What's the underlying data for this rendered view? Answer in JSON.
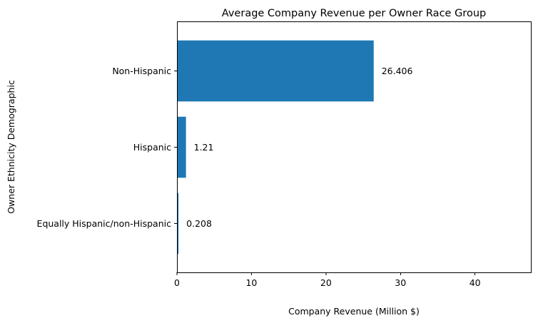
{
  "chart_data": {
    "type": "bar",
    "orientation": "horizontal",
    "title": "Average Company Revenue per Owner Race Group",
    "xlabel": "Company Revenue (Million $)",
    "ylabel": "Owner Ethnicity Demographic",
    "categories": [
      "Non-Hispanic",
      "Hispanic",
      "Equally Hispanic/non-Hispanic"
    ],
    "values": [
      26.406,
      1.21,
      0.208
    ],
    "data_labels": [
      "26.406",
      "1.21",
      "0.208"
    ],
    "xlim": [
      0,
      47.5
    ],
    "x_ticks": [
      0,
      10,
      20,
      30,
      40
    ],
    "x_tick_labels": [
      "0",
      "10",
      "20",
      "30",
      "40"
    ],
    "bar_color": "#1f77b4",
    "grid": false,
    "legend": "none"
  }
}
